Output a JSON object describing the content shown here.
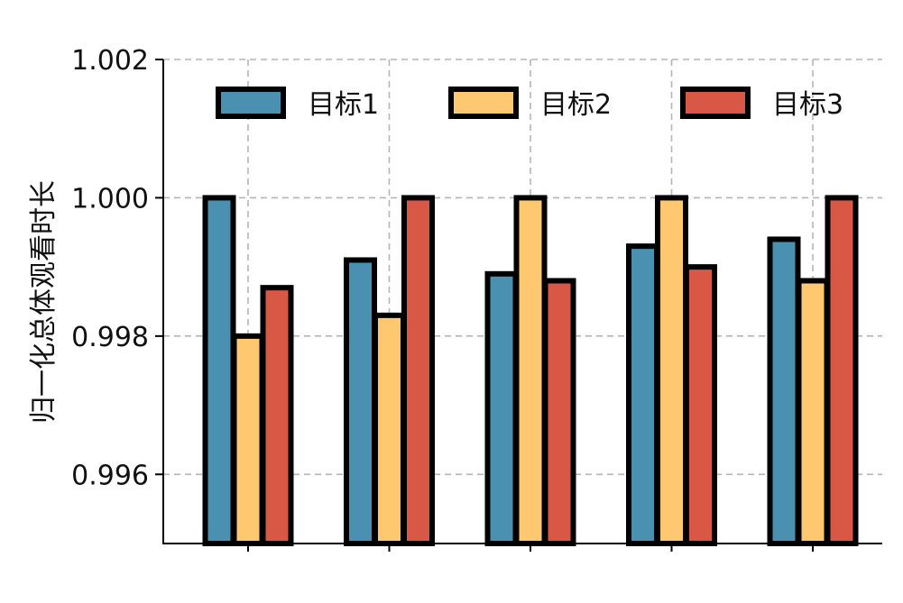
{
  "chart_data": {
    "type": "bar",
    "title": "",
    "xlabel": "",
    "ylabel": "归一化总体观看时长",
    "ylim": [
      0.995,
      1.002
    ],
    "yticks": [
      "0.996",
      "0.998",
      "1.000",
      "1.002"
    ],
    "grid": true,
    "legend_position": "top",
    "group_count": 5,
    "series": [
      {
        "name": "目标1",
        "color": "#4a90b0",
        "values": [
          1.0,
          0.9991,
          0.9989,
          0.9993,
          0.9994
        ]
      },
      {
        "name": "目标2",
        "color": "#fdc86f",
        "values": [
          0.998,
          0.9983,
          1.0,
          1.0,
          0.9988
        ]
      },
      {
        "name": "目标3",
        "color": "#d95745",
        "values": [
          0.9987,
          1.0,
          0.9988,
          0.999,
          1.0
        ]
      }
    ]
  }
}
